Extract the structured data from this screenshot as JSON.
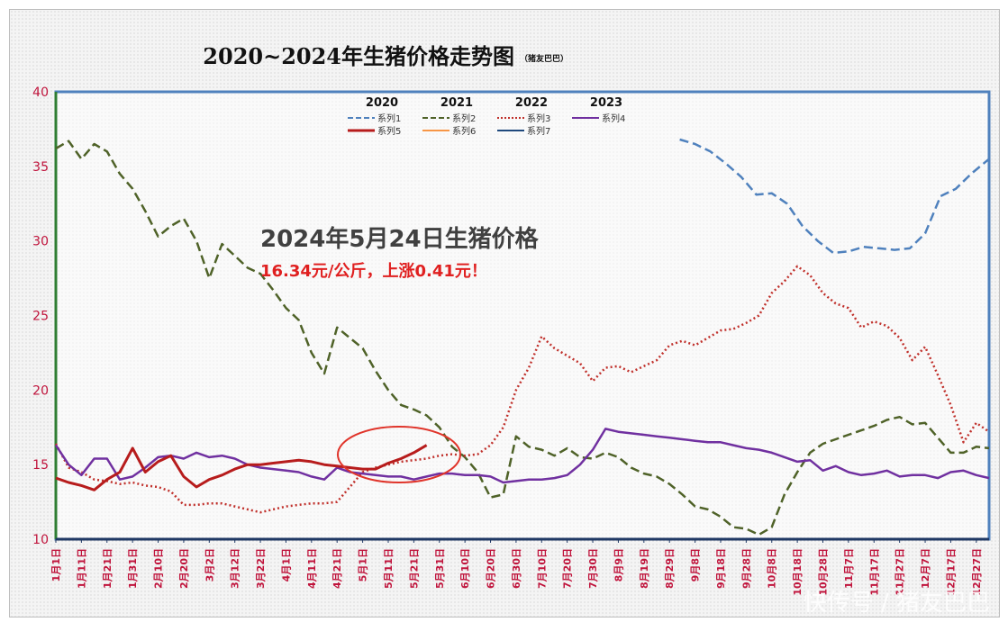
{
  "chart_data": {
    "type": "line",
    "title": "2020~2024年生猪价格走势图",
    "subtitle": "（猪友巴巴）",
    "ylim": [
      10,
      40
    ],
    "yticks": [
      10,
      15,
      20,
      25,
      30,
      35,
      40
    ],
    "grid": false,
    "legend_position": "top-center",
    "legend_years": [
      "2020",
      "2021",
      "2022",
      "2023"
    ],
    "x_tick_labels": [
      "1月1日",
      "1月11日",
      "1月21日",
      "1月31日",
      "2月10日",
      "2月20日",
      "3月2日",
      "3月12日",
      "3月22日",
      "4月1日",
      "4月11日",
      "4月21日",
      "5月1日",
      "5月11日",
      "5月21日",
      "5月31日",
      "6月10日",
      "6月20日",
      "6月30日",
      "7月10日",
      "7月20日",
      "7月30日",
      "8月9日",
      "8月19日",
      "8月29日",
      "9月8日",
      "9月18日",
      "9月28日",
      "10月8日",
      "10月18日",
      "10月28日",
      "11月7日",
      "11月17日",
      "11月27日",
      "12月7日",
      "12月17日",
      "12月27日"
    ],
    "series": [
      {
        "name": "系列1",
        "color": "#4f81bd",
        "dash": "dash",
        "x": [
          244,
          250,
          256,
          262,
          268,
          274,
          280,
          286,
          292,
          298,
          304,
          310,
          316,
          322,
          328,
          334,
          340,
          346,
          352,
          358,
          365
        ],
        "y": [
          36.8,
          36.5,
          36.0,
          35.2,
          34.3,
          33.1,
          33.2,
          32.5,
          31.0,
          30.0,
          29.2,
          29.3,
          29.6,
          29.5,
          29.4,
          29.5,
          30.5,
          33.0,
          33.5,
          34.5,
          35.5
        ]
      },
      {
        "name": "系列2",
        "color": "#4f6228",
        "dash": "dash",
        "x": [
          0,
          5,
          10,
          15,
          20,
          25,
          30,
          35,
          40,
          45,
          50,
          55,
          60,
          65,
          70,
          75,
          80,
          85,
          90,
          95,
          100,
          105,
          110,
          115,
          120,
          125,
          130,
          135,
          140,
          145,
          150,
          155,
          160,
          165,
          170,
          175,
          180,
          185,
          190,
          195,
          200,
          205,
          210,
          215,
          220,
          225,
          230,
          235,
          240,
          245,
          250,
          255,
          260,
          265,
          270,
          275,
          280,
          285,
          290,
          295,
          300,
          305,
          310,
          315,
          320,
          325,
          330,
          335,
          340,
          345,
          350,
          355,
          360,
          365
        ],
        "y": [
          36.2,
          36.7,
          35.5,
          36.5,
          36.0,
          34.5,
          33.5,
          32.0,
          30.3,
          31.0,
          31.5,
          30.0,
          27.5,
          29.8,
          29.0,
          28.2,
          27.8,
          26.7,
          25.5,
          24.7,
          22.5,
          21.1,
          24.2,
          23.5,
          22.8,
          21.3,
          20.0,
          19.0,
          18.7,
          18.3,
          17.5,
          16.2,
          15.5,
          14.5,
          12.8,
          13.0,
          16.9,
          16.2,
          16.0,
          15.6,
          16.1,
          15.5,
          15.4,
          15.8,
          15.5,
          14.8,
          14.4,
          14.2,
          13.7,
          13.0,
          12.2,
          12.0,
          11.5,
          10.8,
          10.7,
          10.3,
          10.8,
          13.0,
          14.5,
          15.8,
          16.4,
          16.7,
          17.0,
          17.3,
          17.6,
          18.0,
          18.2,
          17.7,
          17.8,
          16.8,
          15.8,
          15.8,
          16.2,
          16.1
        ]
      },
      {
        "name": "系列3",
        "color": "#c0302b",
        "dash": "dot",
        "x": [
          0,
          5,
          10,
          15,
          20,
          25,
          30,
          35,
          40,
          45,
          50,
          55,
          60,
          65,
          70,
          75,
          80,
          85,
          90,
          95,
          100,
          105,
          110,
          115,
          120,
          125,
          130,
          135,
          140,
          145,
          150,
          155,
          160,
          165,
          170,
          175,
          180,
          185,
          190,
          195,
          200,
          205,
          210,
          215,
          220,
          225,
          230,
          235,
          240,
          245,
          250,
          255,
          260,
          265,
          270,
          275,
          280,
          285,
          290,
          295,
          300,
          305,
          310,
          315,
          320,
          325,
          330,
          335,
          340,
          345,
          350,
          355,
          360,
          365
        ],
        "y": [
          16.4,
          14.8,
          14.5,
          14.0,
          13.9,
          13.7,
          13.8,
          13.6,
          13.5,
          13.2,
          12.3,
          12.3,
          12.4,
          12.4,
          12.2,
          12.0,
          11.8,
          12.0,
          12.2,
          12.3,
          12.4,
          12.4,
          12.5,
          13.5,
          14.5,
          14.8,
          15.0,
          15.2,
          15.3,
          15.4,
          15.6,
          15.7,
          15.6,
          15.7,
          16.3,
          17.5,
          20.0,
          21.5,
          23.6,
          22.8,
          22.3,
          21.8,
          20.6,
          21.5,
          21.6,
          21.2,
          21.6,
          22.0,
          23.0,
          23.3,
          23.0,
          23.5,
          24.0,
          24.1,
          24.5,
          25.0,
          26.5,
          27.3,
          28.3,
          27.7,
          26.5,
          25.8,
          25.5,
          24.2,
          24.6,
          24.3,
          23.5,
          22.0,
          22.9,
          21.0,
          19.0,
          16.5,
          17.8,
          17.2
        ]
      },
      {
        "name": "系列4",
        "color": "#7030a0",
        "dash": "solid",
        "x": [
          0,
          5,
          10,
          15,
          20,
          25,
          30,
          35,
          40,
          45,
          50,
          55,
          60,
          65,
          70,
          75,
          80,
          85,
          90,
          95,
          100,
          105,
          110,
          115,
          120,
          125,
          130,
          135,
          140,
          145,
          150,
          155,
          160,
          165,
          170,
          175,
          180,
          185,
          190,
          195,
          200,
          205,
          210,
          215,
          220,
          225,
          230,
          235,
          240,
          245,
          250,
          255,
          260,
          265,
          270,
          275,
          280,
          285,
          290,
          295,
          300,
          305,
          310,
          315,
          320,
          325,
          330,
          335,
          340,
          345,
          350,
          355,
          360,
          365
        ],
        "y": [
          16.3,
          15.0,
          14.3,
          15.4,
          15.4,
          14.0,
          14.2,
          14.8,
          15.5,
          15.6,
          15.4,
          15.8,
          15.5,
          15.6,
          15.4,
          15.0,
          14.8,
          14.7,
          14.6,
          14.5,
          14.2,
          14.0,
          14.8,
          14.5,
          14.4,
          14.3,
          14.2,
          14.2,
          14.0,
          14.2,
          14.4,
          14.4,
          14.3,
          14.3,
          14.2,
          13.8,
          13.9,
          14.0,
          14.0,
          14.1,
          14.3,
          15.0,
          16.0,
          17.4,
          17.2,
          17.1,
          17.0,
          16.9,
          16.8,
          16.7,
          16.6,
          16.5,
          16.5,
          16.3,
          16.1,
          16.0,
          15.8,
          15.5,
          15.2,
          15.3,
          14.6,
          14.9,
          14.5,
          14.3,
          14.4,
          14.6,
          14.2,
          14.3,
          14.3,
          14.1,
          14.5,
          14.6,
          14.3,
          14.1
        ]
      },
      {
        "name": "系列5",
        "color": "#b71c1c",
        "dash": "solid",
        "x": [
          0,
          5,
          10,
          15,
          20,
          25,
          30,
          35,
          40,
          45,
          50,
          55,
          60,
          65,
          70,
          75,
          80,
          85,
          90,
          95,
          100,
          105,
          110,
          115,
          120,
          125,
          130,
          135,
          140,
          145
        ],
        "y": [
          14.1,
          13.8,
          13.6,
          13.3,
          14.0,
          14.5,
          16.1,
          14.5,
          15.2,
          15.6,
          14.2,
          13.5,
          14.0,
          14.3,
          14.7,
          15.0,
          15.0,
          15.1,
          15.2,
          15.3,
          15.2,
          15.0,
          14.9,
          14.8,
          14.7,
          14.7,
          15.1,
          15.4,
          15.8,
          16.3
        ]
      },
      {
        "name": "系列6",
        "color": "#f79646",
        "dash": "solid",
        "x": [],
        "y": []
      },
      {
        "name": "系列7",
        "color": "#1f497d",
        "dash": "solid",
        "x": [],
        "y": []
      }
    ],
    "annotations": [
      "2024年5月24日生猪价格",
      "16.34元/公斤，上涨0.41元！"
    ],
    "watermark": "快传号 / 猪友巴巴"
  }
}
